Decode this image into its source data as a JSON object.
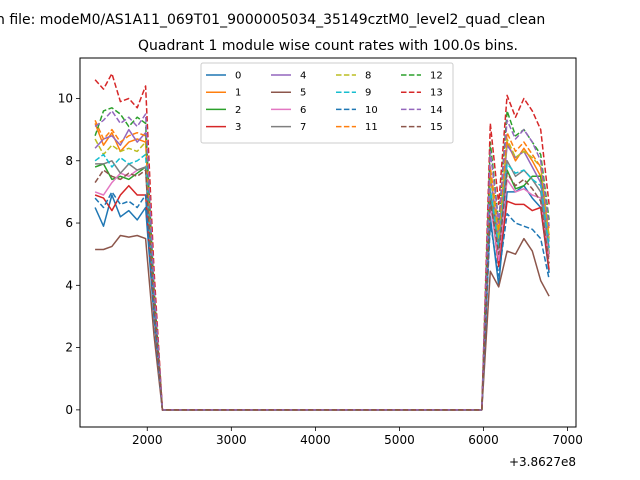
{
  "chart_data": {
    "type": "line",
    "suptitle": "n file: modeM0/AS1A11_069T01_9000005034_35149cztM0_level2_quad_clean",
    "title": "Quadrant 1 module wise count rates with 100.0s bins.",
    "xlabel": "",
    "ylabel": "",
    "offset_text": "+3.8627e8",
    "xlim": [
      1200,
      7100
    ],
    "ylim": [
      -0.55,
      11.3
    ],
    "xticks": [
      2000,
      3000,
      4000,
      5000,
      6000,
      7000
    ],
    "yticks": [
      0,
      2,
      4,
      6,
      8,
      10
    ],
    "grid": false,
    "legend_position": "top-center",
    "legend_columns": 4,
    "colors": [
      "#1f77b4",
      "#ff7f0e",
      "#2ca02c",
      "#d62728",
      "#9467bd",
      "#8c564b",
      "#e377c2",
      "#7f7f7f",
      "#bcbd22",
      "#17becf"
    ],
    "x": [
      1380,
      1480,
      1580,
      1680,
      1780,
      1880,
      1980,
      2080,
      2180,
      5980,
      6080,
      6180,
      6280,
      6380,
      6480,
      6580,
      6680,
      6780
    ],
    "series": [
      {
        "name": "0",
        "dash": false,
        "values": [
          6.5,
          5.9,
          6.9,
          6.2,
          6.4,
          6.1,
          6.5,
          3.0,
          0,
          0,
          6.2,
          4.0,
          7.0,
          7.0,
          7.2,
          6.8,
          6.5,
          4.4
        ]
      },
      {
        "name": "1",
        "dash": false,
        "values": [
          9.2,
          8.5,
          8.9,
          8.3,
          8.6,
          8.7,
          8.6,
          3.8,
          0,
          0,
          7.6,
          5.6,
          8.6,
          8.0,
          8.4,
          8.0,
          7.5,
          5.6
        ]
      },
      {
        "name": "2",
        "dash": false,
        "values": [
          7.8,
          7.9,
          7.4,
          7.5,
          7.4,
          7.6,
          7.8,
          3.3,
          0,
          0,
          7.0,
          5.4,
          7.7,
          7.1,
          7.2,
          7.5,
          7.5,
          5.0
        ]
      },
      {
        "name": "3",
        "dash": false,
        "values": [
          6.9,
          6.8,
          6.4,
          6.9,
          7.2,
          6.9,
          6.9,
          3.2,
          0,
          0,
          6.8,
          4.6,
          6.7,
          6.6,
          6.6,
          6.4,
          6.5,
          4.5
        ]
      },
      {
        "name": "4",
        "dash": false,
        "values": [
          8.4,
          8.7,
          8.8,
          8.5,
          9.0,
          8.6,
          8.9,
          3.7,
          0,
          0,
          7.5,
          5.5,
          8.5,
          8.1,
          8.3,
          7.8,
          7.3,
          5.4
        ]
      },
      {
        "name": "5",
        "dash": false,
        "values": [
          5.15,
          5.15,
          5.25,
          5.6,
          5.55,
          5.6,
          5.5,
          2.4,
          0,
          0,
          4.45,
          3.95,
          5.1,
          5.0,
          5.5,
          5.1,
          4.15,
          3.65
        ]
      },
      {
        "name": "6",
        "dash": false,
        "values": [
          7.0,
          6.9,
          7.3,
          7.6,
          7.5,
          7.7,
          7.8,
          3.2,
          0,
          0,
          6.6,
          4.8,
          7.4,
          7.0,
          7.1,
          6.9,
          6.8,
          4.9
        ]
      },
      {
        "name": "7",
        "dash": false,
        "values": [
          7.9,
          7.9,
          8.0,
          7.6,
          7.9,
          7.7,
          7.8,
          3.4,
          0,
          0,
          6.9,
          5.2,
          8.0,
          7.5,
          7.7,
          7.4,
          7.0,
          5.2
        ]
      },
      {
        "name": "8",
        "dash": true,
        "values": [
          8.7,
          8.2,
          8.5,
          8.3,
          8.4,
          8.3,
          8.6,
          3.7,
          0,
          0,
          7.6,
          5.5,
          8.7,
          8.1,
          8.3,
          8.1,
          7.8,
          5.5
        ]
      },
      {
        "name": "9",
        "dash": true,
        "values": [
          8.0,
          8.2,
          7.8,
          8.1,
          7.9,
          8.0,
          8.2,
          3.5,
          0,
          0,
          7.1,
          5.2,
          7.9,
          7.6,
          7.7,
          7.4,
          7.2,
          5.2
        ]
      },
      {
        "name": "10",
        "dash": true,
        "values": [
          6.8,
          6.5,
          7.0,
          6.6,
          6.7,
          6.5,
          6.9,
          3.0,
          0,
          0,
          6.0,
          4.3,
          6.3,
          6.0,
          5.9,
          5.8,
          5.5,
          4.2
        ]
      },
      {
        "name": "11",
        "dash": true,
        "values": [
          9.3,
          8.7,
          9.0,
          8.6,
          8.8,
          8.9,
          8.8,
          3.8,
          0,
          0,
          7.8,
          5.8,
          8.9,
          8.3,
          8.6,
          8.2,
          7.8,
          5.8
        ]
      },
      {
        "name": "12",
        "dash": true,
        "values": [
          8.8,
          9.6,
          9.7,
          9.5,
          9.1,
          9.4,
          9.2,
          3.9,
          0,
          0,
          8.6,
          6.0,
          9.6,
          8.8,
          9.0,
          8.6,
          8.2,
          6.1
        ]
      },
      {
        "name": "13",
        "dash": true,
        "values": [
          10.6,
          10.3,
          10.8,
          9.9,
          10.0,
          9.7,
          10.4,
          4.5,
          0,
          0,
          9.2,
          6.6,
          10.1,
          9.4,
          10.0,
          9.6,
          9.0,
          6.6
        ]
      },
      {
        "name": "14",
        "dash": true,
        "values": [
          9.1,
          9.3,
          9.6,
          9.2,
          9.4,
          9.1,
          9.5,
          4.0,
          0,
          0,
          8.3,
          6.0,
          9.3,
          8.7,
          9.0,
          8.6,
          8.0,
          5.9
        ]
      },
      {
        "name": "15",
        "dash": true,
        "values": [
          7.3,
          7.7,
          7.5,
          7.4,
          7.6,
          7.5,
          7.7,
          3.3,
          0,
          0,
          6.7,
          5.0,
          7.6,
          7.2,
          7.4,
          7.1,
          6.7,
          4.7
        ]
      }
    ]
  }
}
